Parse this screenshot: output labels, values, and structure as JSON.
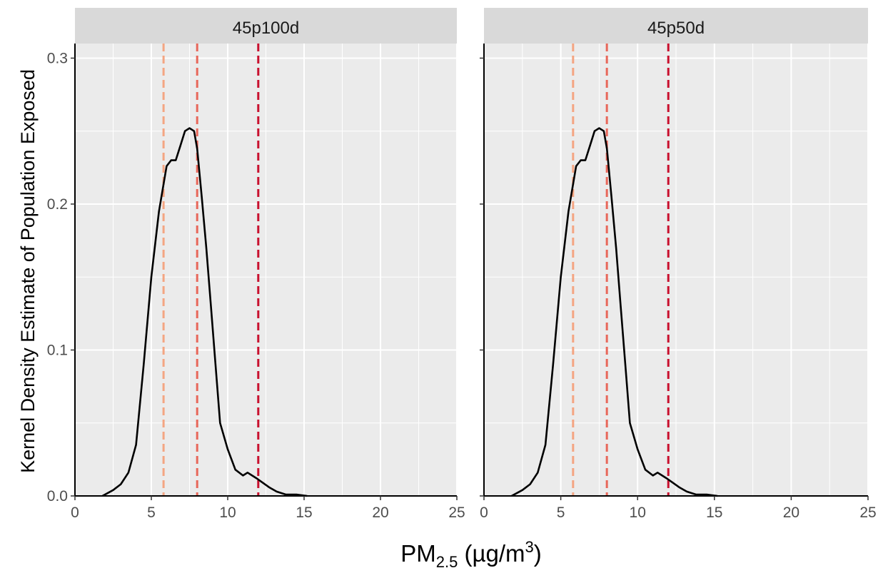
{
  "chart_data": {
    "type": "line",
    "xlabel": {
      "main": "PM",
      "sub": "2.5",
      "unit_open": " (µg/m",
      "sup": "3",
      "unit_close": ")"
    },
    "ylabel": "Kernel Density Estimate of Population Exposed",
    "xlim": [
      0,
      25
    ],
    "ylim": [
      0,
      0.31
    ],
    "x_ticks": [
      "0",
      "5",
      "10",
      "15",
      "20",
      "25"
    ],
    "y_ticks": [
      "0.0",
      "0.1",
      "0.2",
      "0.3"
    ],
    "grid": true,
    "line_color": "#000000",
    "panel_bg": "#ebebeb",
    "strip_bg": "#d9d9d9",
    "reference_lines": [
      {
        "x": 5.8,
        "color": "#f4a582"
      },
      {
        "x": 8.0,
        "color": "#e8675a"
      },
      {
        "x": 12.0,
        "color": "#c8102e"
      }
    ],
    "panels": [
      {
        "label": "45p100d",
        "x": [
          1.8,
          2.5,
          3.0,
          3.5,
          4.0,
          4.5,
          5.0,
          5.5,
          6.0,
          6.3,
          6.6,
          6.9,
          7.2,
          7.5,
          7.8,
          8.0,
          8.3,
          8.6,
          8.9,
          9.2,
          9.5,
          10.0,
          10.5,
          11.0,
          11.3,
          11.6,
          11.9,
          12.3,
          12.7,
          13.2,
          13.8,
          14.5,
          15.2
        ],
        "y": [
          0.0,
          0.004,
          0.008,
          0.016,
          0.035,
          0.09,
          0.15,
          0.195,
          0.226,
          0.23,
          0.23,
          0.24,
          0.25,
          0.252,
          0.25,
          0.238,
          0.205,
          0.17,
          0.13,
          0.09,
          0.05,
          0.032,
          0.018,
          0.014,
          0.016,
          0.014,
          0.012,
          0.009,
          0.006,
          0.003,
          0.001,
          0.001,
          0.0
        ]
      },
      {
        "label": "45p50d",
        "x": [
          1.8,
          2.5,
          3.0,
          3.5,
          4.0,
          4.5,
          5.0,
          5.5,
          6.0,
          6.3,
          6.6,
          6.9,
          7.2,
          7.5,
          7.8,
          8.0,
          8.3,
          8.6,
          8.9,
          9.2,
          9.5,
          10.0,
          10.5,
          11.0,
          11.3,
          11.6,
          11.9,
          12.3,
          12.7,
          13.2,
          13.8,
          14.5,
          15.2
        ],
        "y": [
          0.0,
          0.004,
          0.008,
          0.016,
          0.035,
          0.09,
          0.15,
          0.195,
          0.226,
          0.23,
          0.23,
          0.24,
          0.25,
          0.252,
          0.25,
          0.238,
          0.205,
          0.17,
          0.13,
          0.09,
          0.05,
          0.032,
          0.018,
          0.014,
          0.016,
          0.014,
          0.012,
          0.009,
          0.006,
          0.003,
          0.001,
          0.001,
          0.0
        ]
      }
    ]
  }
}
